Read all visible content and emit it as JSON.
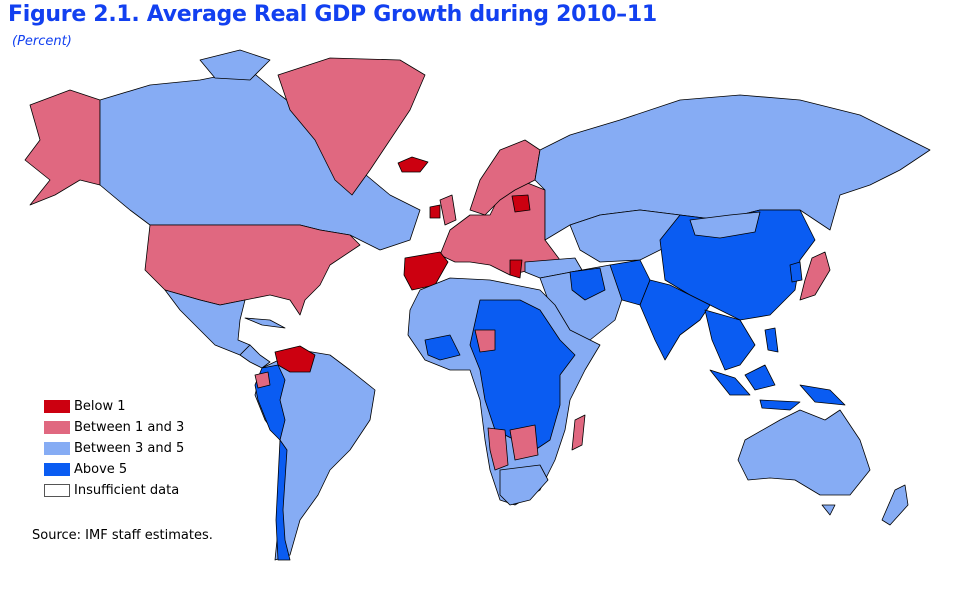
{
  "title": "Figure 2.1.  Average Real GDP Growth during 2010–11",
  "subtitle": "(Percent)",
  "legend": [
    {
      "label": "Below 1",
      "color": "#cc0010"
    },
    {
      "label": "Between 1 and 3",
      "color": "#e06880"
    },
    {
      "label": "Between 3 and 5",
      "color": "#86acf4"
    },
    {
      "label": "Above 5",
      "color": "#0a5cf2"
    },
    {
      "label": "Insufficient data",
      "color": "#ffffff"
    }
  ],
  "source": "Source: IMF staff estimates."
}
